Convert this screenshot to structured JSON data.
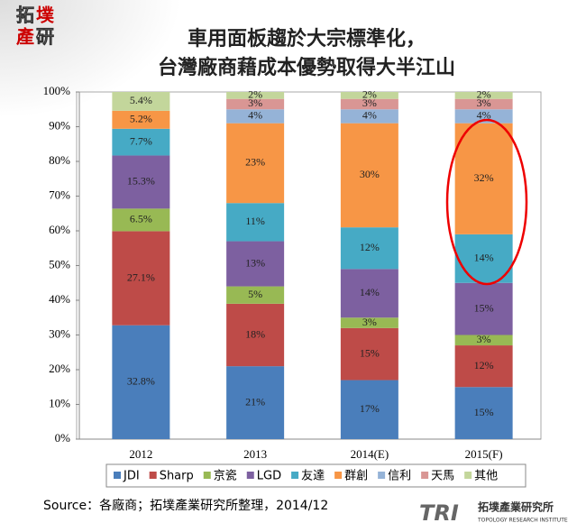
{
  "branding": {
    "logo_chars": [
      "拓",
      "墣",
      "產",
      "研"
    ],
    "footer_mark": "TRI",
    "footer_logo": "拓墣產業研究所",
    "footer_logo_en": "TOPOLOGY RESEARCH INSTITUTE"
  },
  "chart_data": {
    "type": "stacked_bar",
    "title": [
      "車用面板趨於大宗標準化，",
      "台灣廠商藉成本優勢取得大半江山"
    ],
    "source": "Source：各廠商；拓墣產業研究所整理，2014/12",
    "categories": [
      "2012",
      "2013",
      "2014(E)",
      "2015(F)"
    ],
    "ylim": [
      0,
      100
    ],
    "yticks": [
      {
        "value": 0,
        "label": "0%"
      },
      {
        "value": 10,
        "label": "10%"
      },
      {
        "value": 20,
        "label": "20%"
      },
      {
        "value": 30,
        "label": "30%"
      },
      {
        "value": 40,
        "label": "40%"
      },
      {
        "value": 50,
        "label": "50%"
      },
      {
        "value": 60,
        "label": "60%"
      },
      {
        "value": 70,
        "label": "70%"
      },
      {
        "value": 80,
        "label": "80%"
      },
      {
        "value": 90,
        "label": "90%"
      },
      {
        "value": 100,
        "label": "100%"
      }
    ],
    "grid": false,
    "series": [
      {
        "name": "JDI",
        "color": "#4a7ebb",
        "values": [
          32.8,
          21,
          17,
          15
        ],
        "value_labels": [
          "32.8%",
          "21%",
          "17%",
          "15%"
        ]
      },
      {
        "name": "Sharp",
        "color": "#be4b48",
        "values": [
          27.1,
          18,
          15,
          12
        ],
        "value_labels": [
          "27.1%",
          "18%",
          "15%",
          "12%"
        ]
      },
      {
        "name": "京瓷",
        "color": "#98b954",
        "values": [
          6.5,
          5,
          3,
          3
        ],
        "value_labels": [
          "6.5%",
          "5%",
          "3%",
          "3%"
        ]
      },
      {
        "name": "LGD",
        "color": "#7d60a0",
        "values": [
          15.3,
          13,
          14,
          15
        ],
        "value_labels": [
          "15.3%",
          "13%",
          "14%",
          "15%"
        ]
      },
      {
        "name": "友達",
        "color": "#46aac5",
        "values": [
          7.7,
          11,
          12,
          14
        ],
        "value_labels": [
          "7.7%",
          "11%",
          "12%",
          "14%"
        ]
      },
      {
        "name": "群創",
        "color": "#f79646",
        "values": [
          5.2,
          23,
          30,
          32
        ],
        "value_labels": [
          "5.2%",
          "23%",
          "30%",
          "32%"
        ]
      },
      {
        "name": "信利",
        "color": "#95b3d7",
        "values": [
          null,
          4,
          4,
          4
        ],
        "value_labels": [
          null,
          "4%",
          "4%",
          "4%"
        ]
      },
      {
        "name": "天馬",
        "color": "#d99694",
        "values": [
          null,
          3,
          3,
          3
        ],
        "value_labels": [
          null,
          "3%",
          "3%",
          "3%"
        ]
      },
      {
        "name": "其他",
        "color": "#c3d69b",
        "values": [
          5.4,
          2,
          2,
          2
        ],
        "value_labels": [
          "5.4%",
          "2%",
          "2%",
          "2%"
        ]
      }
    ]
  }
}
